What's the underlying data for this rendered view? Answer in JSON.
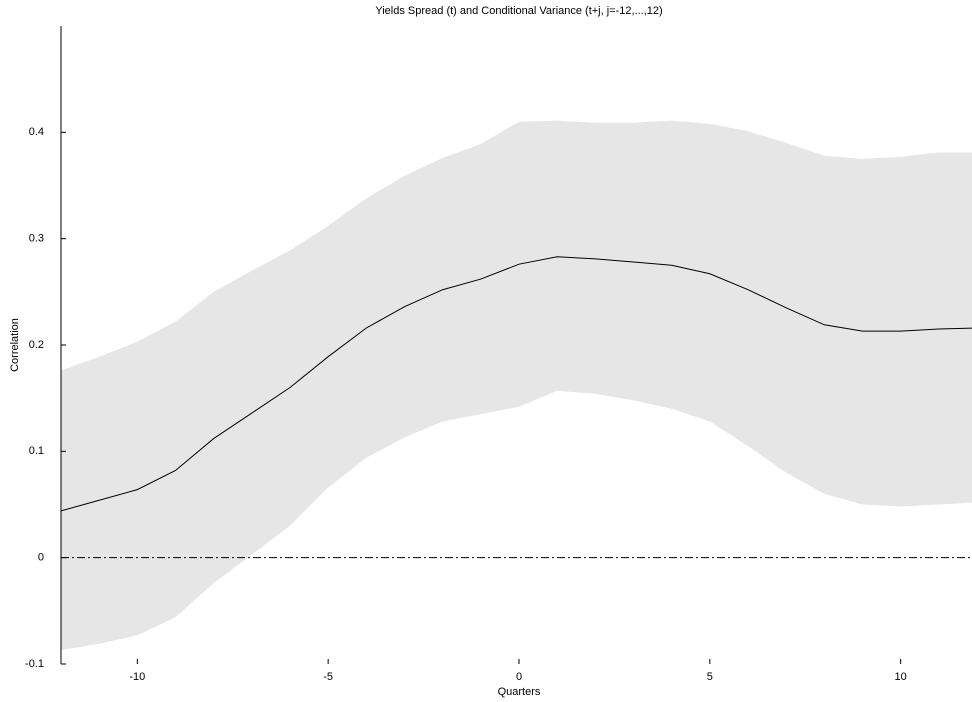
{
  "chart_data": {
    "type": "line",
    "title": "Yields Spread (t) and Conditional Variance (t+j, j=-12,...,12)",
    "xlabel": "Quarters",
    "ylabel": "Correlation",
    "x": [
      -12,
      -11,
      -10,
      -9,
      -8,
      -7,
      -6,
      -5,
      -4,
      -3,
      -2,
      -1,
      0,
      1,
      2,
      3,
      4,
      5,
      6,
      7,
      8,
      9,
      10,
      11,
      12
    ],
    "series": [
      {
        "color": "#000000",
        "values": [
          0.044,
          0.054,
          0.064,
          0.082,
          0.112,
          0.136,
          0.16,
          0.189,
          0.216,
          0.236,
          0.252,
          0.262,
          0.276,
          0.283,
          0.281,
          0.278,
          0.275,
          0.267,
          0.252,
          0.235,
          0.219,
          0.213,
          0.213,
          0.215,
          0.216
        ]
      }
    ],
    "band": {
      "color": "#e6e6e6",
      "upper": [
        0.176,
        0.189,
        0.203,
        0.222,
        0.25,
        0.27,
        0.289,
        0.312,
        0.338,
        0.359,
        0.376,
        0.389,
        0.41,
        0.411,
        0.409,
        0.409,
        0.411,
        0.408,
        0.401,
        0.39,
        0.378,
        0.375,
        0.377,
        0.381,
        0.381
      ],
      "lower": [
        -0.087,
        -0.081,
        -0.073,
        -0.056,
        -0.024,
        0.003,
        0.03,
        0.066,
        0.094,
        0.113,
        0.128,
        0.135,
        0.142,
        0.157,
        0.154,
        0.148,
        0.14,
        0.128,
        0.105,
        0.08,
        0.06,
        0.05,
        0.048,
        0.05,
        0.052
      ]
    },
    "hline": 0,
    "xlim": [
      -12,
      12
    ],
    "ylim": [
      -0.1,
      0.5
    ],
    "xticks": [
      -10,
      -5,
      0,
      5,
      10
    ],
    "yticks": [
      -0.1,
      0,
      0.1,
      0.2,
      0.3,
      0.4
    ],
    "grid": false
  }
}
